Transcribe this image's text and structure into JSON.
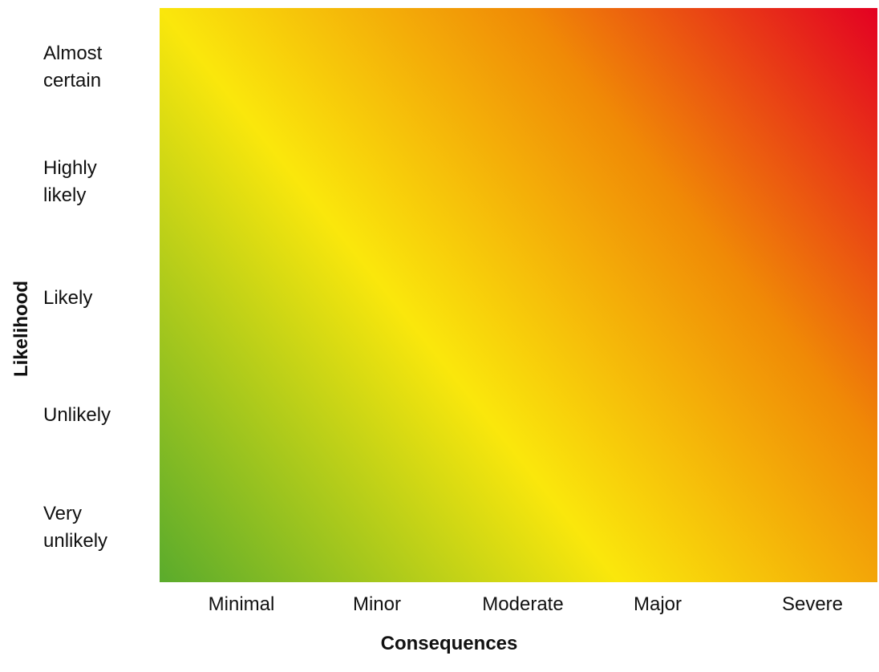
{
  "chart_data": {
    "type": "heatmap",
    "title": "",
    "xlabel": "Consequences",
    "ylabel": "Likelihood",
    "x_categories": [
      "Minimal",
      "Minor",
      "Moderate",
      "Major",
      "Severe"
    ],
    "y_categories": [
      "Very unlikely",
      "Unlikely",
      "Likely",
      "Highly likely",
      "Almost certain"
    ],
    "y_tick_lines": [
      [
        "Very",
        "unlikely"
      ],
      [
        "Unlikely"
      ],
      [
        "Likely"
      ],
      [
        "Highly",
        "likely"
      ],
      [
        "Almost",
        "certain"
      ]
    ],
    "grid": false,
    "legend": "none",
    "gradient": {
      "direction": "bottom-left to top-right",
      "stops": [
        {
          "offset": 0.0,
          "color": "#5aab2c"
        },
        {
          "offset": 0.39,
          "color": "#fae70c"
        },
        {
          "offset": 0.7,
          "color": "#f08a06"
        },
        {
          "offset": 1.0,
          "color": "#e30022"
        }
      ]
    }
  }
}
